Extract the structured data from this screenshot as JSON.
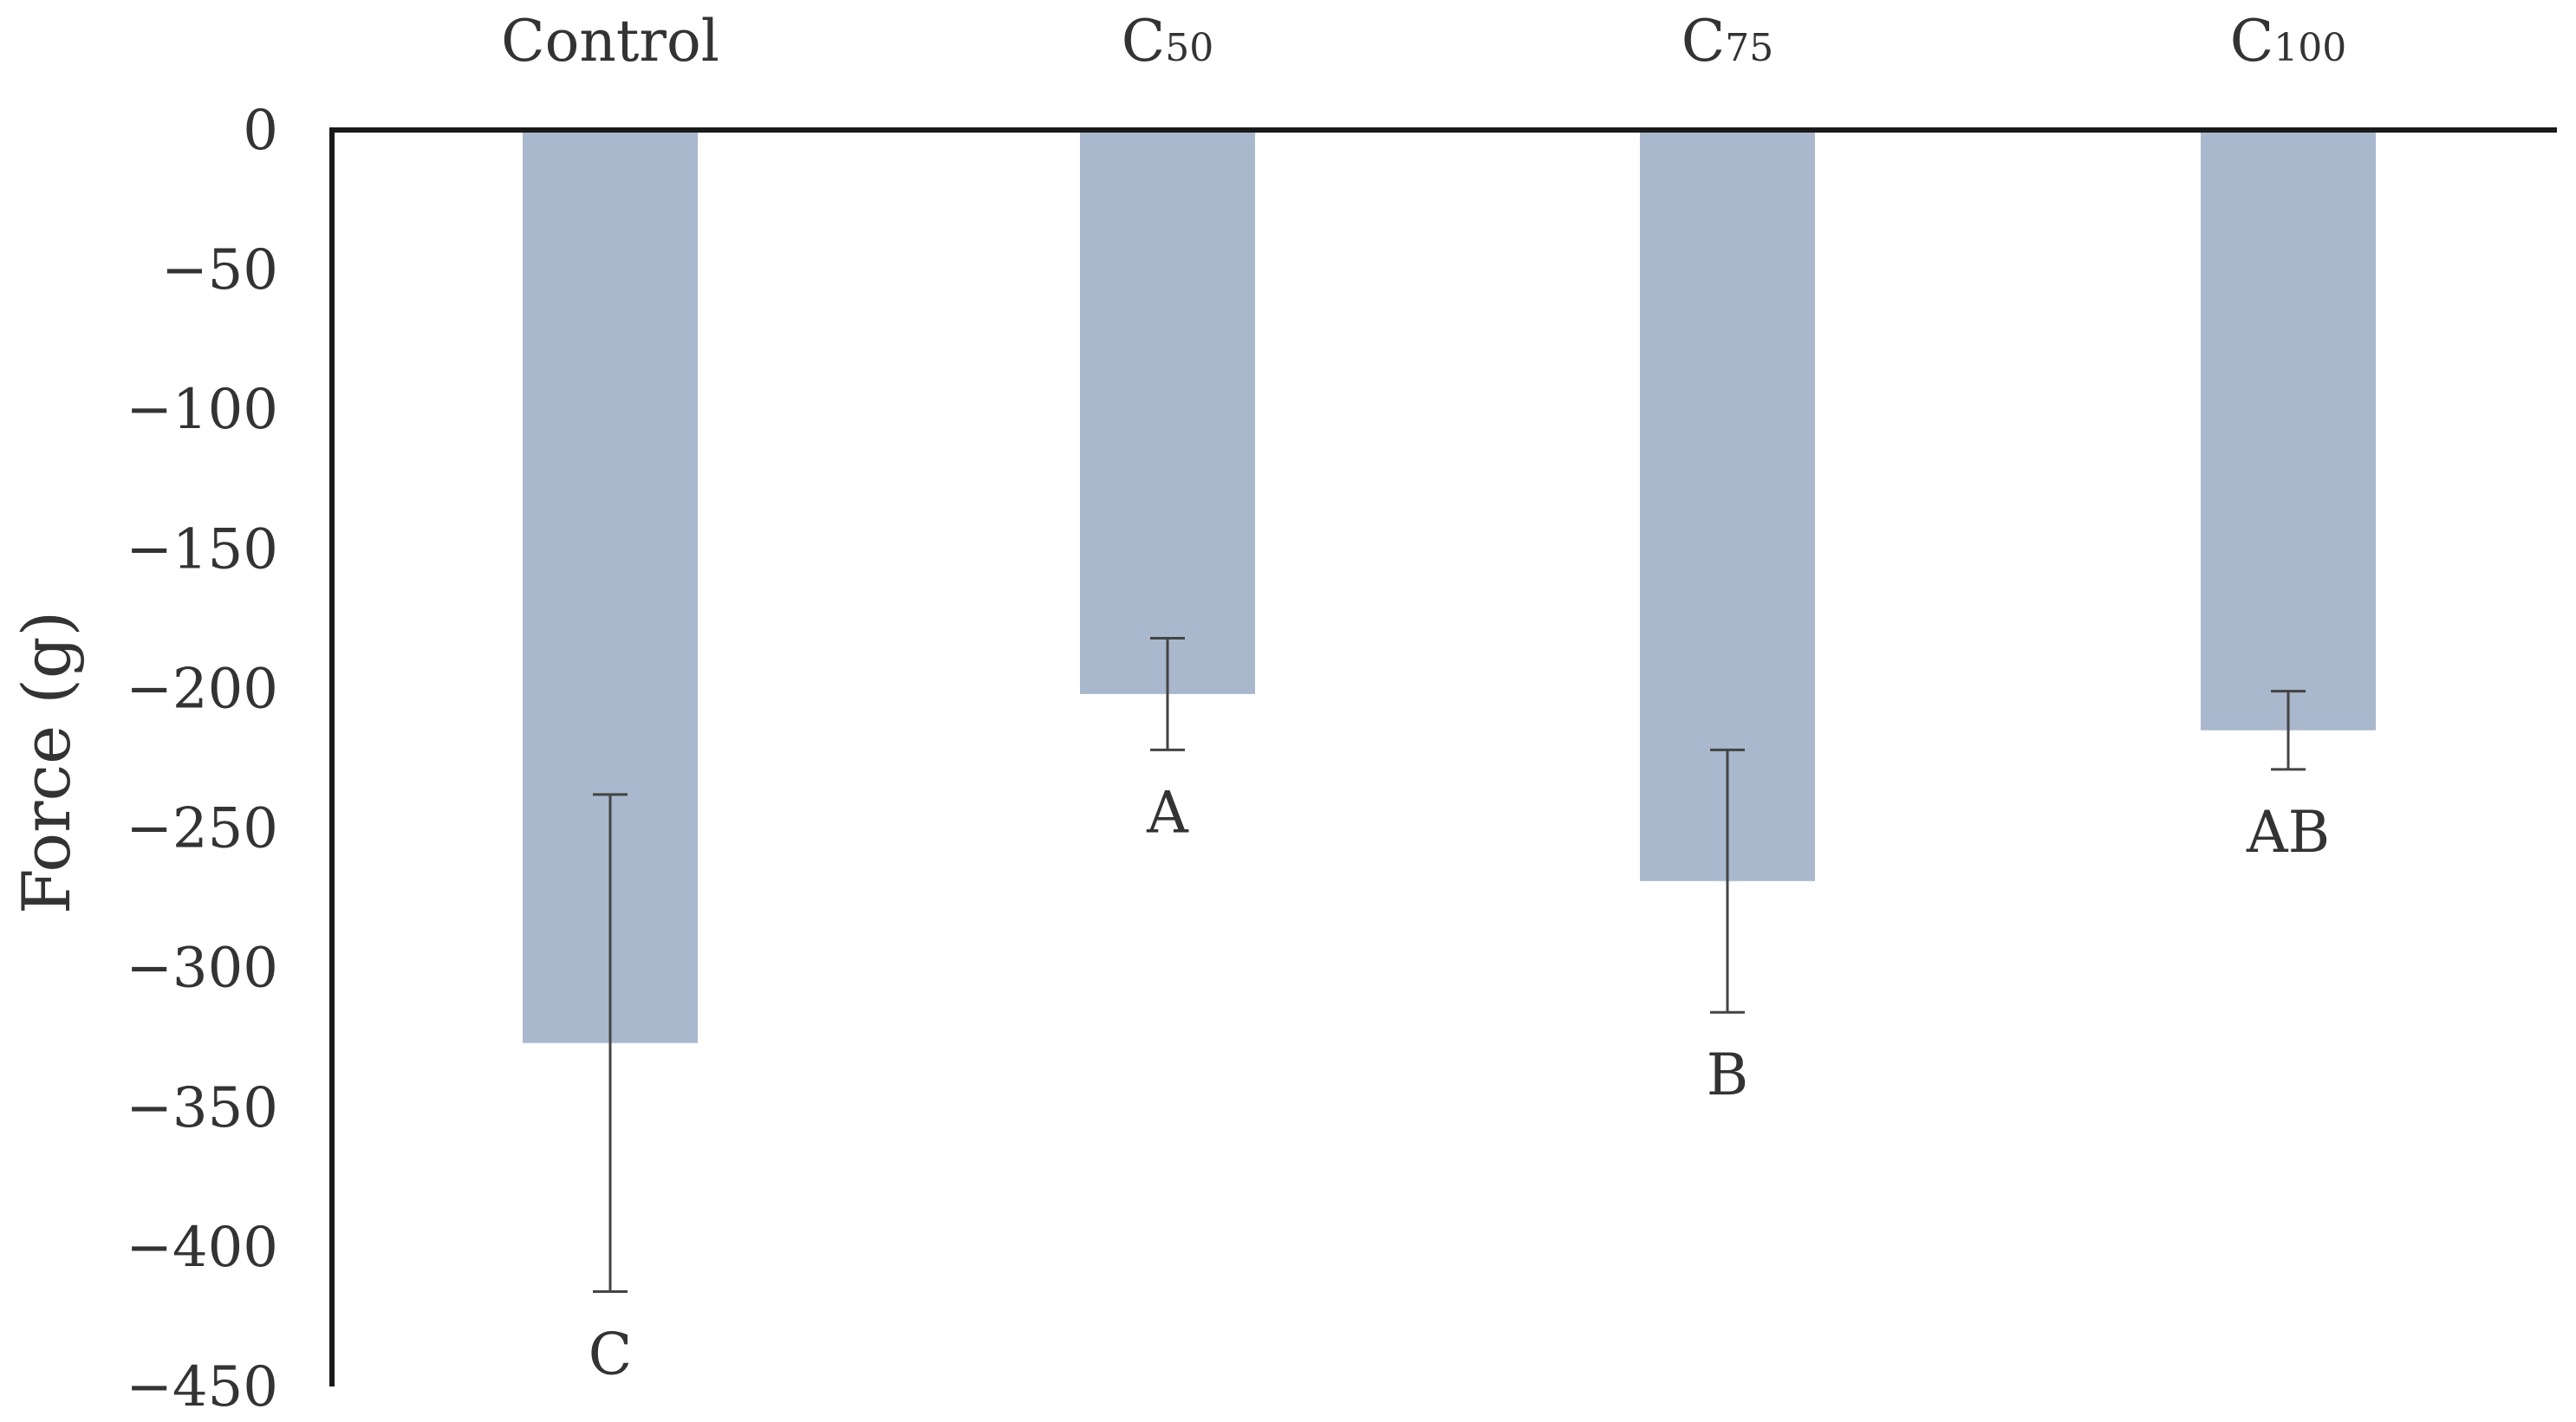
{
  "chart_data": {
    "type": "bar",
    "categories": [
      {
        "main": "Control",
        "sub": ""
      },
      {
        "main": "C",
        "sub": "50"
      },
      {
        "main": "C",
        "sub": "75"
      },
      {
        "main": "C",
        "sub": "100"
      }
    ],
    "values": [
      -327,
      -202,
      -269,
      -215
    ],
    "error": [
      89,
      20,
      47,
      14
    ],
    "significance_labels": [
      "C",
      "A",
      "B",
      "AB"
    ],
    "ylabel": "Force (g)",
    "ylim": [
      -450,
      0
    ],
    "yticks": [
      0,
      -50,
      -100,
      -150,
      -200,
      -250,
      -300,
      -350,
      -400,
      -450
    ],
    "ytick_labels": [
      "0",
      "−50",
      "−100",
      "−150",
      "−200",
      "−250",
      "−300",
      "−350",
      "−400",
      "−450"
    ],
    "x_axis_position": "top",
    "grid": false,
    "legend": "none",
    "bar_color": "#a9b8cc",
    "axis_color": "#1a1a1a",
    "error_bar_color": "#444444"
  }
}
